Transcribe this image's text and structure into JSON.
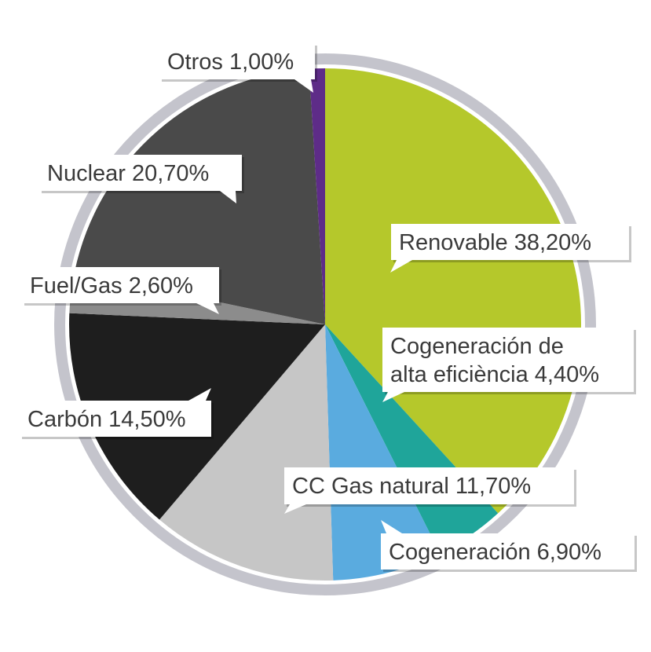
{
  "chart_data": {
    "type": "pie",
    "title": "",
    "start_angle_deg": 0,
    "direction": "clockwise",
    "slices": [
      {
        "label": "Renovable 38,20%",
        "lines": [
          "Renovable 38,20%"
        ],
        "value": 38.2,
        "color": "#b5c82b"
      },
      {
        "label": "Cogeneración de alta eficiència 4,40%",
        "lines": [
          "Cogeneración de",
          "alta eficiència 4,40%"
        ],
        "value": 4.4,
        "color": "#1fa59a"
      },
      {
        "label": "Cogeneración 6,90%",
        "lines": [
          "Cogeneración 6,90%"
        ],
        "value": 6.9,
        "color": "#5aabdf"
      },
      {
        "label": "CC Gas natural 11,70%",
        "lines": [
          "CC Gas natural 11,70%"
        ],
        "value": 11.7,
        "color": "#c6c6c6"
      },
      {
        "label": "Carbón 14,50%",
        "lines": [
          "Carbón 14,50%"
        ],
        "value": 14.5,
        "color": "#1e1e1e"
      },
      {
        "label": "Fuel/Gas 2,60%",
        "lines": [
          "Fuel/Gas 2,60%"
        ],
        "value": 2.6,
        "color": "#8c8c8c"
      },
      {
        "label": "Nuclear 20,70%",
        "lines": [
          "Nuclear 20,70%"
        ],
        "value": 20.7,
        "color": "#4a4a4a"
      },
      {
        "label": "Otros 1,00%",
        "lines": [
          "Otros 1,00%"
        ],
        "value": 1.0,
        "color": "#5e2c88"
      }
    ],
    "outer_ring_color": "#c4c4cc",
    "legend": "callout labels"
  }
}
